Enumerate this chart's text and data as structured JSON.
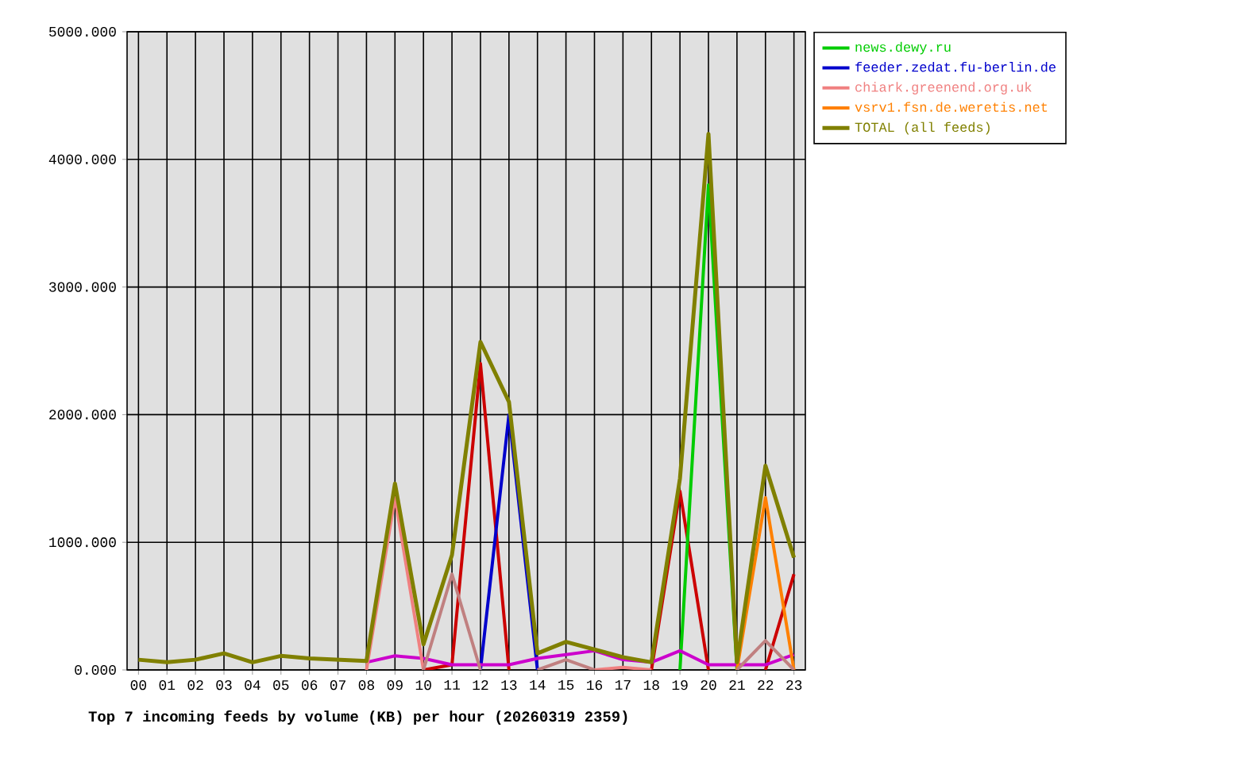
{
  "chart_data": {
    "type": "line",
    "title": "Top 7 incoming feeds by volume (KB) per hour (20260319 2359)",
    "categories": [
      "00",
      "01",
      "02",
      "03",
      "04",
      "05",
      "06",
      "07",
      "08",
      "09",
      "10",
      "11",
      "12",
      "13",
      "14",
      "15",
      "16",
      "17",
      "18",
      "19",
      "20",
      "21",
      "22",
      "23"
    ],
    "series": [
      {
        "color": "#cc0000",
        "values": [
          null,
          null,
          null,
          null,
          null,
          null,
          null,
          null,
          null,
          null,
          0,
          40,
          2400,
          0,
          null,
          null,
          null,
          null,
          0,
          1400,
          0,
          null,
          0,
          750
        ]
      },
      {
        "name": "news.dewy.ru",
        "color": "#00cc00",
        "values": [
          null,
          null,
          null,
          null,
          null,
          null,
          null,
          null,
          null,
          null,
          null,
          null,
          null,
          null,
          null,
          null,
          null,
          null,
          null,
          0,
          3800,
          0,
          null,
          null
        ]
      },
      {
        "name": "feeder.zedat.fu-berlin.de",
        "color": "#0000cc",
        "values": [
          null,
          null,
          null,
          null,
          null,
          null,
          null,
          null,
          null,
          null,
          null,
          null,
          0,
          2000,
          0,
          null,
          null,
          null,
          null,
          null,
          null,
          null,
          null,
          null
        ]
      },
      {
        "color": "#cc00cc",
        "values": [
          null,
          null,
          null,
          null,
          null,
          null,
          null,
          null,
          60,
          110,
          90,
          40,
          40,
          40,
          90,
          120,
          150,
          80,
          60,
          150,
          40,
          40,
          40,
          120
        ]
      },
      {
        "name": "chiark.greenend.org.uk",
        "color": "#f08080",
        "values": [
          null,
          null,
          null,
          null,
          null,
          null,
          null,
          null,
          0,
          1350,
          0,
          null,
          null,
          null,
          null,
          null,
          0,
          20,
          0,
          null,
          null,
          null,
          null,
          null
        ]
      },
      {
        "name": "vsrv1.fsn.de.weretis.net",
        "color": "#ff8000",
        "values": [
          null,
          null,
          null,
          null,
          null,
          null,
          null,
          null,
          null,
          null,
          null,
          null,
          null,
          null,
          null,
          null,
          null,
          null,
          null,
          null,
          null,
          0,
          1350,
          0
        ]
      },
      {
        "color": "#c08080",
        "values": [
          null,
          null,
          null,
          null,
          null,
          null,
          null,
          null,
          null,
          null,
          0,
          750,
          0,
          null,
          0,
          80,
          0,
          null,
          null,
          null,
          null,
          0,
          230,
          0
        ]
      },
      {
        "name": "TOTAL (all feeds)",
        "color": "#808000",
        "values": [
          80,
          60,
          80,
          130,
          60,
          110,
          90,
          80,
          70,
          1460,
          200,
          900,
          2570,
          2100,
          130,
          220,
          160,
          100,
          60,
          1500,
          4200,
          60,
          1600,
          880
        ]
      }
    ],
    "ylim": [
      0,
      5000
    ],
    "yticks": [
      {
        "value": 0,
        "label": "0.000"
      },
      {
        "value": 1000,
        "label": "1000.000"
      },
      {
        "value": 2000,
        "label": "2000.000"
      },
      {
        "value": 3000,
        "label": "3000.000"
      },
      {
        "value": 4000,
        "label": "4000.000"
      },
      {
        "value": 5000,
        "label": "5000.000"
      }
    ],
    "grid": true,
    "legend": "right",
    "marker": "none",
    "line_style": "solid"
  }
}
